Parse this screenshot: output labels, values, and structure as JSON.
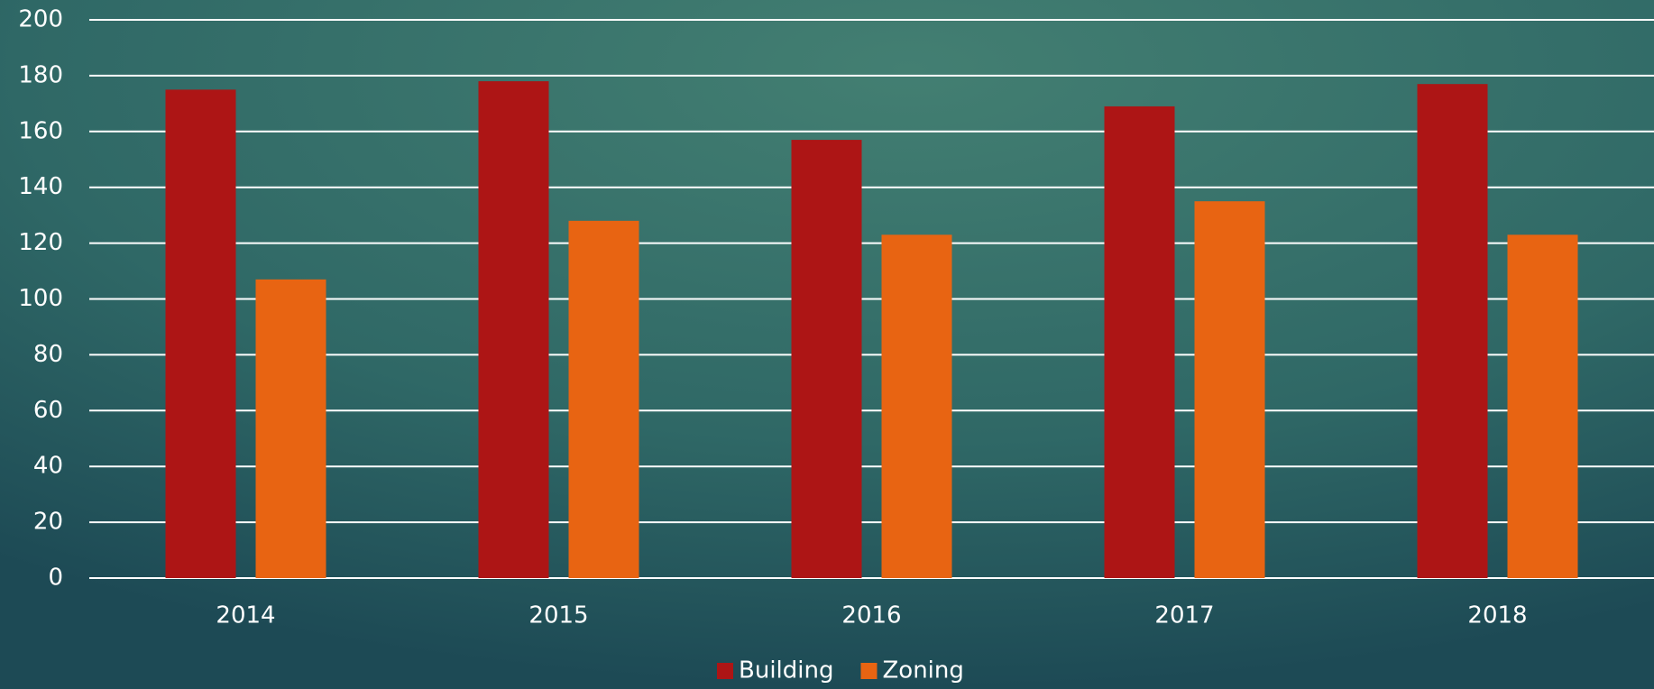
{
  "chart_data": {
    "type": "bar",
    "categories": [
      "2014",
      "2015",
      "2016",
      "2017",
      "2018"
    ],
    "series": [
      {
        "name": "Building",
        "color": "#ad1515",
        "values": [
          175,
          178,
          157,
          169,
          177
        ]
      },
      {
        "name": "Zoning",
        "color": "#e86412",
        "values": [
          107,
          128,
          123,
          135,
          123
        ]
      }
    ],
    "ylim": [
      0,
      200
    ],
    "yticks": [
      0,
      20,
      40,
      60,
      80,
      100,
      120,
      140,
      160,
      180,
      200
    ],
    "grid": true,
    "legend": "bottom"
  }
}
